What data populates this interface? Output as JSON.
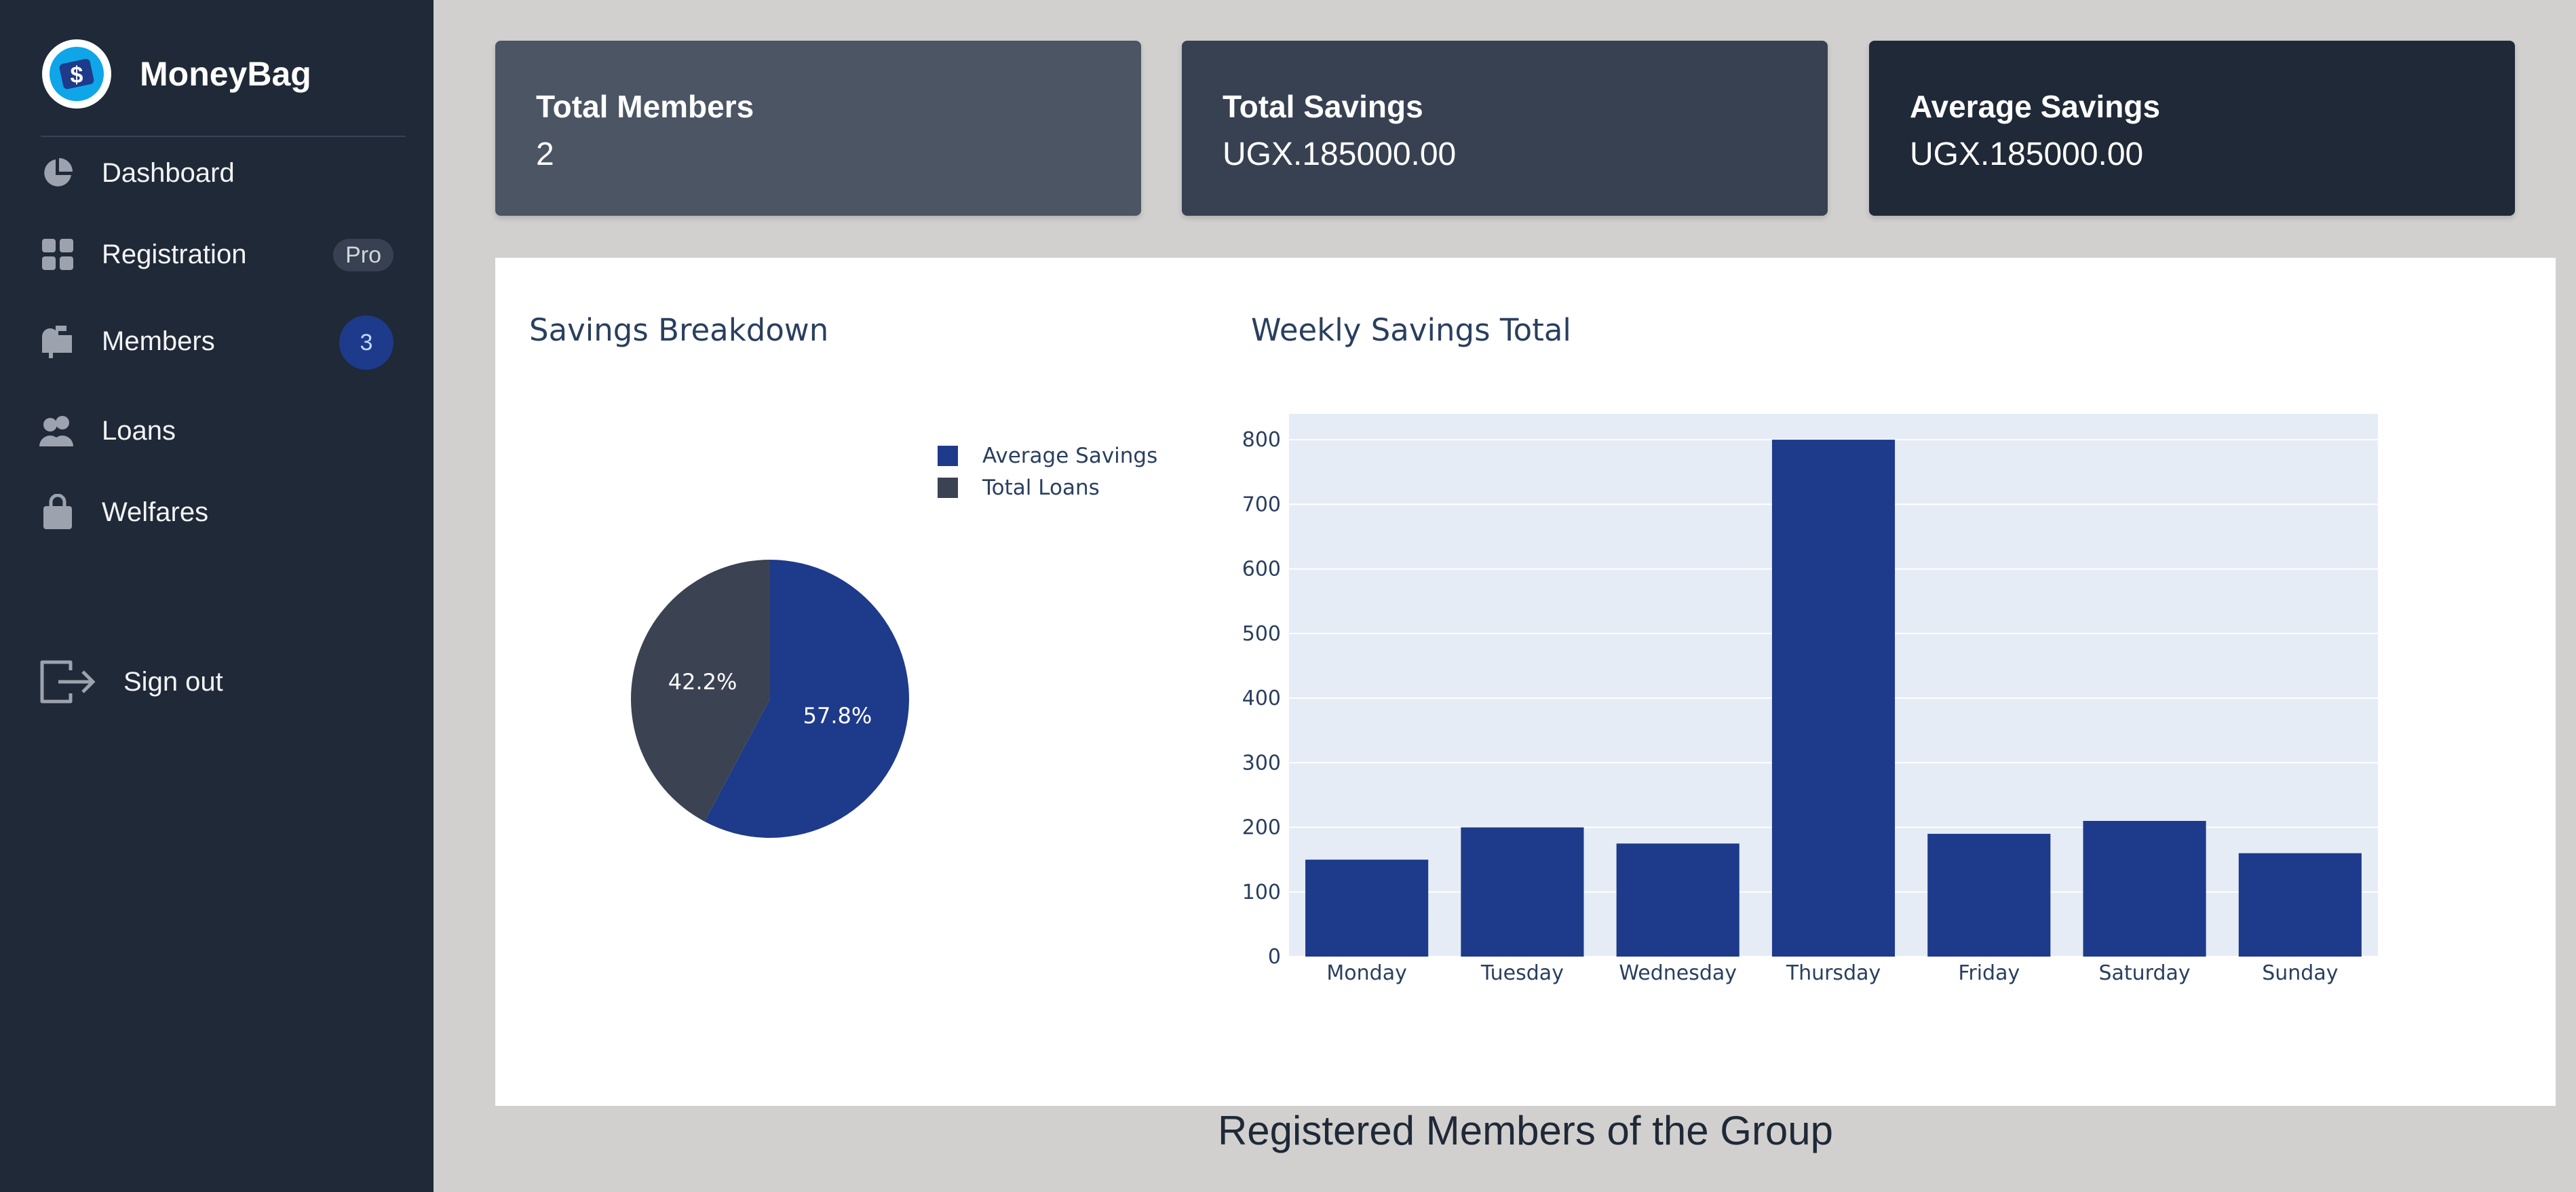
{
  "app": {
    "name": "MoneyBag"
  },
  "sidebar": {
    "items": [
      {
        "label": "Dashboard",
        "icon": "pie-chart-icon"
      },
      {
        "label": "Registration",
        "icon": "grid-icon",
        "badge": "Pro"
      },
      {
        "label": "Members",
        "icon": "mailbox-icon",
        "badge": "3"
      },
      {
        "label": "Loans",
        "icon": "users-icon"
      },
      {
        "label": "Welfares",
        "icon": "shopping-bag-icon"
      }
    ],
    "signout": {
      "label": "Sign out",
      "icon": "sign-out-icon"
    }
  },
  "stats": [
    {
      "title": "Total Members",
      "value": "2",
      "color": "#4b5563"
    },
    {
      "title": "Total Savings",
      "value": "UGX.185000.00",
      "color": "#374151"
    },
    {
      "title": "Average Savings",
      "value": "UGX.185000.00",
      "color": "#1f2937"
    }
  ],
  "colors": {
    "primary": "#1e3a8a",
    "secondary": "#3b4252",
    "plot_bg": "#e5ecf6"
  },
  "chart_data": [
    {
      "type": "pie",
      "title": "Savings Breakdown",
      "labels": [
        "Average Savings",
        "Total Loans"
      ],
      "values": [
        57.8,
        42.2
      ],
      "value_labels": [
        "57.8%",
        "42.2%"
      ],
      "colors": [
        "#1e3a8a",
        "#3b4252"
      ],
      "legend": "top-right"
    },
    {
      "type": "bar",
      "title": "Weekly Savings Total",
      "categories": [
        "Monday",
        "Tuesday",
        "Wednesday",
        "Thursday",
        "Friday",
        "Saturday",
        "Sunday"
      ],
      "values": [
        150,
        200,
        175,
        800,
        190,
        210,
        160
      ],
      "ylim": [
        0,
        840
      ],
      "yticks": [
        0,
        100,
        200,
        300,
        400,
        500,
        600,
        700,
        800
      ],
      "grid": true,
      "color": "#1e3a8a"
    }
  ],
  "footer": {
    "title": "Registered Members of the Group"
  }
}
